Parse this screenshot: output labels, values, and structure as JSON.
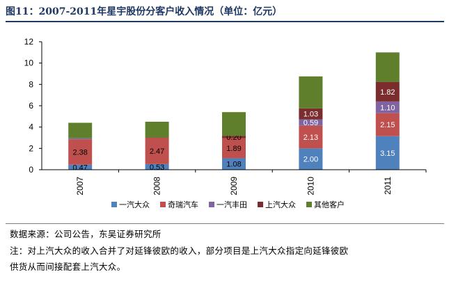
{
  "title": "图11：2007-2011年星宇股份分客户收入情况（单位：亿元）",
  "source_note": "数据来源：公司公告，东吴证券研究所",
  "footnote_line1": "注：对上汽大众的收入合并了对延锋彼欧的收入，部分项目是上汽大众指定向延锋彼欧",
  "footnote_line2": "供货从而间接配套上汽大众。",
  "chart_data": {
    "type": "bar",
    "stacked": true,
    "categories": [
      "2007",
      "2008",
      "2009",
      "2010",
      "2011"
    ],
    "series": [
      {
        "name": "一汽大众",
        "color": "#4f81bd",
        "values": [
          0.47,
          0.53,
          1.08,
          2.0,
          3.15
        ],
        "labels": [
          "0.47",
          "0.53",
          "1.08",
          "2.00",
          "3.15"
        ],
        "label_color": [
          "#000000",
          "#000000",
          "#000000",
          "#ffffff",
          "#ffffff"
        ]
      },
      {
        "name": "奇瑞汽车",
        "color": "#c0504d",
        "values": [
          2.38,
          2.47,
          1.89,
          2.13,
          2.15
        ],
        "labels": [
          "2.38",
          "2.47",
          "1.89",
          "2.13",
          "2.15"
        ],
        "label_color": [
          "#000000",
          "#000000",
          "#000000",
          "#ffffff",
          "#ffffff"
        ]
      },
      {
        "name": "一汽丰田",
        "color": "#8064a2",
        "values": [
          0.1,
          0.0,
          0.0,
          0.59,
          1.1
        ],
        "labels": [
          "",
          "",
          "",
          "0.59",
          "1.10"
        ],
        "label_color": [
          "#000000",
          "#000000",
          "#000000",
          "#ffffff",
          "#ffffff"
        ]
      },
      {
        "name": "上汽大众",
        "color": "#7b2c2c",
        "values": [
          0.0,
          0.0,
          0.2,
          1.03,
          1.82
        ],
        "labels": [
          "",
          "",
          "0.20",
          "1.03",
          "1.82"
        ],
        "label_color": [
          "#000000",
          "#000000",
          "#000000",
          "#ffffff",
          "#ffffff"
        ]
      },
      {
        "name": "其他客户",
        "color": "#5f7f2c",
        "values": [
          1.45,
          1.5,
          2.23,
          3.0,
          2.78
        ],
        "labels": [
          "",
          "",
          "",
          "",
          ""
        ],
        "label_color": [
          "#000000",
          "#000000",
          "#000000",
          "#000000",
          "#000000"
        ]
      }
    ],
    "ylim": [
      0,
      12
    ],
    "yticks": [
      "0",
      "2",
      "4",
      "6",
      "8",
      "10",
      "12"
    ],
    "legend_position": "bottom",
    "grid": false
  }
}
